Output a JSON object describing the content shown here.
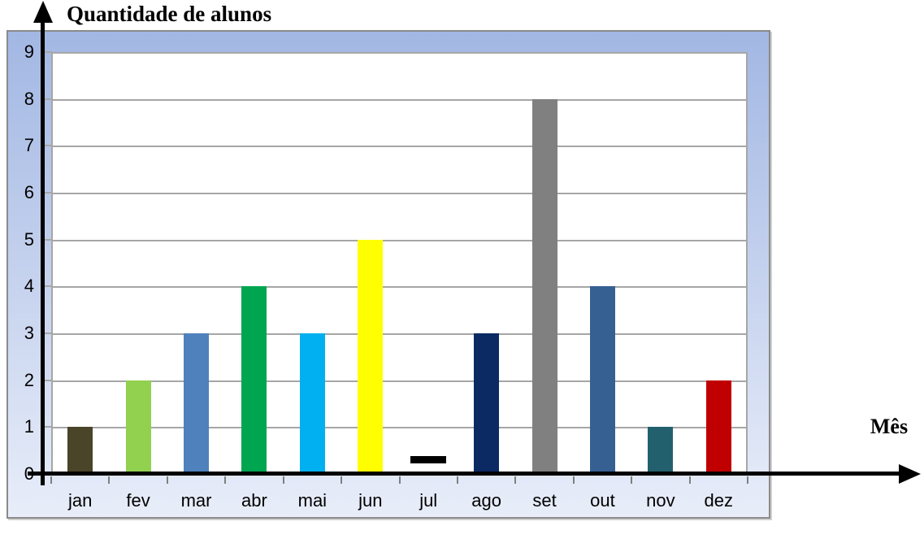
{
  "title": {
    "text": "Quantidade de alunos"
  },
  "x_axis_title": {
    "text": "Mês"
  },
  "chart_data": {
    "type": "bar",
    "title": "Quantidade de alunos",
    "ylabel": "Quantidade de alunos",
    "xlabel": "Mês",
    "categories": [
      "jan",
      "fev",
      "mar",
      "abr",
      "mai",
      "jun",
      "jul",
      "ago",
      "set",
      "out",
      "nov",
      "dez"
    ],
    "values": [
      1,
      2,
      3,
      4,
      3,
      5,
      0,
      3,
      8,
      4,
      1,
      2
    ],
    "bar_colors": [
      "#4a4428",
      "#92d050",
      "#4f81bd",
      "#00a550",
      "#00b0f0",
      "#ffff00",
      "#000000",
      "#0b2a63",
      "#808080",
      "#366092",
      "#23606d",
      "#c00000"
    ],
    "yticks": [
      "0",
      "1",
      "2",
      "3",
      "4",
      "5",
      "6",
      "7",
      "8",
      "9"
    ],
    "ylim": [
      0,
      9
    ],
    "grid": true,
    "legend_position": "none",
    "zero_rendering": "jul (value 0) is drawn as a short black dash just above the x-axis"
  },
  "colors": {
    "frame_gradient_top": "#a2b7e3",
    "frame_gradient_bottom": "#e8edf9",
    "frame_border": "#8a8a8a",
    "gridline": "#a6a6a6",
    "tick": "#7f7f7f",
    "axis": "#000000",
    "text": "#000000",
    "plot_background": "#ffffff"
  }
}
